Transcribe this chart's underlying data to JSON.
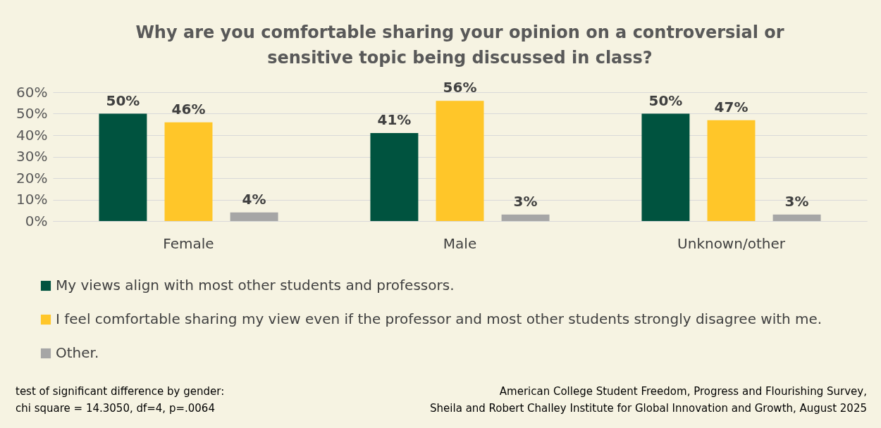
{
  "chart_data": {
    "type": "bar",
    "title": "Why are you comfortable sharing your opinion on a controversial or sensitive topic being discussed in class?",
    "categories": [
      "Female",
      "Male",
      "Unknown/other"
    ],
    "series": [
      {
        "name": "My views align with most other students and professors.",
        "color": "#00533f",
        "values": [
          50,
          41,
          50
        ],
        "value_labels": [
          "50%",
          "41%",
          "50%"
        ]
      },
      {
        "name": "I feel comfortable sharing my view even if the professor and most other students strongly disagree with me.",
        "color": "#ffc629",
        "values": [
          46,
          56,
          47
        ],
        "value_labels": [
          "46%",
          "56%",
          "47%"
        ]
      },
      {
        "name": "Other.",
        "color": "#a6a6a6",
        "values": [
          4,
          3,
          3
        ],
        "value_labels": [
          "4%",
          "3%",
          "3%"
        ]
      }
    ],
    "ylim": [
      0,
      60
    ],
    "yticks": [
      {
        "value": 0,
        "label": "0%"
      },
      {
        "value": 10,
        "label": "10%"
      },
      {
        "value": 20,
        "label": "20%"
      },
      {
        "value": 30,
        "label": "30%"
      },
      {
        "value": 40,
        "label": "40%"
      },
      {
        "value": 50,
        "label": "50%"
      },
      {
        "value": 60,
        "label": "60%"
      }
    ],
    "grid": "y",
    "legend": "bottom",
    "annotations": [
      "test of significant difference by gender:\nchi square = 14.3050, df=4, p=.0064",
      "American College Student Freedom, Progress and Flourishing Survey,\nSheila and Robert Challey Institute for Global Innovation and Growth, August 2025"
    ]
  }
}
